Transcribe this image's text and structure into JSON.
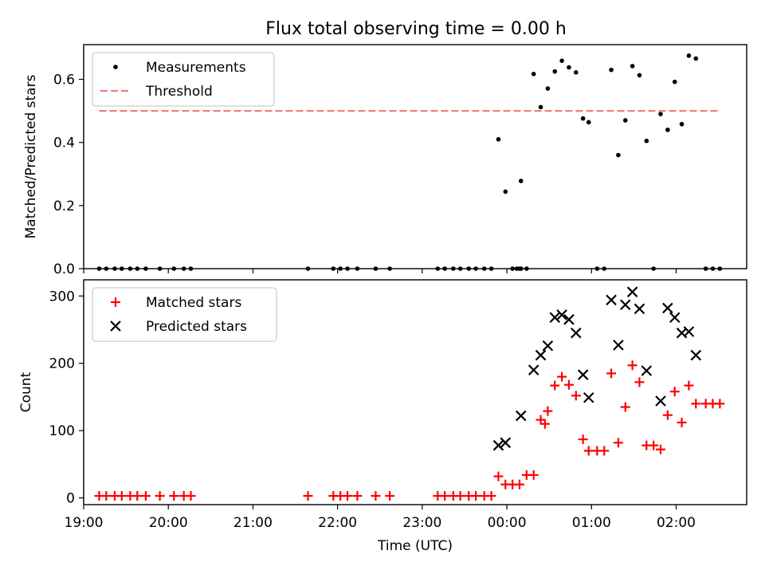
{
  "figure": {
    "title": "Flux total observing time = 0.00 h"
  },
  "chart_data": [
    {
      "type": "scatter",
      "ylabel": "Matched/Predicted stars",
      "xlim": [
        "19:00",
        "02:50"
      ],
      "ylim": [
        0,
        0.71
      ],
      "x_ticks": [
        "19:00",
        "20:00",
        "21:00",
        "22:00",
        "23:00",
        "00:00",
        "01:00",
        "02:00"
      ],
      "y_ticks": [
        0.0,
        0.2,
        0.4,
        0.6
      ],
      "y_tick_labels": [
        "0.0",
        "0.2",
        "0.4",
        "0.6"
      ],
      "grid": false,
      "legend": {
        "position": "top-left",
        "entries": [
          "Measurements",
          "Threshold"
        ]
      },
      "series": [
        {
          "name": "Measurements",
          "marker": "dot",
          "color": "#000000",
          "points": [
            [
              "19:11",
              0
            ],
            [
              "19:16",
              0
            ],
            [
              "19:22",
              0
            ],
            [
              "19:27",
              0
            ],
            [
              "19:33",
              0
            ],
            [
              "19:38",
              0
            ],
            [
              "19:44",
              0
            ],
            [
              "19:54",
              0
            ],
            [
              "20:04",
              0
            ],
            [
              "20:11",
              0
            ],
            [
              "20:16",
              0
            ],
            [
              "21:39",
              0
            ],
            [
              "21:57",
              0
            ],
            [
              "22:02",
              0
            ],
            [
              "22:07",
              0
            ],
            [
              "22:14",
              0
            ],
            [
              "22:27",
              0
            ],
            [
              "22:37",
              0
            ],
            [
              "23:11",
              0
            ],
            [
              "23:16",
              0
            ],
            [
              "23:22",
              0
            ],
            [
              "23:27",
              0
            ],
            [
              "23:33",
              0
            ],
            [
              "23:38",
              0
            ],
            [
              "23:44",
              0
            ],
            [
              "23:49",
              0
            ],
            [
              "23:54",
              0.41
            ],
            [
              "23:59",
              0.244
            ],
            [
              "00:04",
              0
            ],
            [
              "00:07",
              0
            ],
            [
              "00:09",
              0
            ],
            [
              "00:10",
              0
            ],
            [
              "00:10",
              0.278
            ],
            [
              "00:14",
              0
            ],
            [
              "00:19",
              0.617
            ],
            [
              "00:24",
              0.512
            ],
            [
              "00:29",
              0.571
            ],
            [
              "00:34",
              0.625
            ],
            [
              "00:39",
              0.659
            ],
            [
              "00:44",
              0.638
            ],
            [
              "00:49",
              0.622
            ],
            [
              "00:54",
              0.476
            ],
            [
              "00:58",
              0.464
            ],
            [
              "01:04",
              0
            ],
            [
              "01:09",
              0
            ],
            [
              "01:14",
              0.63
            ],
            [
              "01:19",
              0.36
            ],
            [
              "01:24",
              0.47
            ],
            [
              "01:29",
              0.642
            ],
            [
              "01:34",
              0.613
            ],
            [
              "01:39",
              0.405
            ],
            [
              "01:44",
              0
            ],
            [
              "01:49",
              0.49
            ],
            [
              "01:54",
              0.44
            ],
            [
              "01:59",
              0.592
            ],
            [
              "02:04",
              0.458
            ],
            [
              "02:09",
              0.675
            ],
            [
              "02:14",
              0.666
            ],
            [
              "02:21",
              0
            ],
            [
              "02:26",
              0
            ],
            [
              "02:31",
              0
            ]
          ]
        },
        {
          "name": "Threshold",
          "style": "dashed",
          "color": "#f08080",
          "points": [
            [
              "19:11",
              0.5
            ],
            [
              "02:31",
              0.5
            ]
          ]
        }
      ]
    },
    {
      "type": "scatter",
      "xlabel": "Time (UTC)",
      "ylabel": "Count",
      "xlim": [
        "19:00",
        "02:50"
      ],
      "ylim": [
        -10,
        324
      ],
      "x_ticks": [
        "19:00",
        "20:00",
        "21:00",
        "22:00",
        "23:00",
        "00:00",
        "01:00",
        "02:00"
      ],
      "y_ticks": [
        0,
        100,
        200,
        300
      ],
      "y_tick_labels": [
        "0",
        "100",
        "200",
        "300"
      ],
      "grid": false,
      "legend": {
        "position": "top-left",
        "entries": [
          "Matched stars",
          "Predicted stars"
        ]
      },
      "series": [
        {
          "name": "Matched stars",
          "marker": "plus",
          "color": "#ff0000",
          "points": [
            [
              "19:11",
              3
            ],
            [
              "19:16",
              3
            ],
            [
              "19:22",
              3
            ],
            [
              "19:27",
              3
            ],
            [
              "19:33",
              3
            ],
            [
              "19:38",
              3
            ],
            [
              "19:44",
              3
            ],
            [
              "19:54",
              3
            ],
            [
              "20:04",
              3
            ],
            [
              "20:11",
              3
            ],
            [
              "20:16",
              3
            ],
            [
              "21:39",
              3
            ],
            [
              "21:57",
              3
            ],
            [
              "22:02",
              3
            ],
            [
              "22:07",
              3
            ],
            [
              "22:14",
              3
            ],
            [
              "22:27",
              3
            ],
            [
              "22:37",
              3
            ],
            [
              "23:11",
              3
            ],
            [
              "23:16",
              3
            ],
            [
              "23:22",
              3
            ],
            [
              "23:27",
              3
            ],
            [
              "23:33",
              3
            ],
            [
              "23:38",
              3
            ],
            [
              "23:44",
              3
            ],
            [
              "23:49",
              3
            ],
            [
              "23:54",
              32
            ],
            [
              "23:59",
              20
            ],
            [
              "00:04",
              20
            ],
            [
              "00:09",
              20
            ],
            [
              "00:14",
              34
            ],
            [
              "00:19",
              34
            ],
            [
              "00:24",
              116
            ],
            [
              "00:27",
              110
            ],
            [
              "00:29",
              129
            ],
            [
              "00:34",
              167
            ],
            [
              "00:39",
              180
            ],
            [
              "00:44",
              168
            ],
            [
              "00:49",
              152
            ],
            [
              "00:54",
              87
            ],
            [
              "00:58",
              70
            ],
            [
              "01:04",
              70
            ],
            [
              "01:09",
              70
            ],
            [
              "01:14",
              185
            ],
            [
              "01:19",
              82
            ],
            [
              "01:24",
              135
            ],
            [
              "01:29",
              197
            ],
            [
              "01:34",
              172
            ],
            [
              "01:39",
              78
            ],
            [
              "01:44",
              78
            ],
            [
              "01:49",
              72
            ],
            [
              "01:54",
              123
            ],
            [
              "01:59",
              158
            ],
            [
              "02:04",
              112
            ],
            [
              "02:09",
              167
            ],
            [
              "02:14",
              140
            ],
            [
              "02:21",
              140
            ],
            [
              "02:26",
              140
            ],
            [
              "02:31",
              140
            ]
          ]
        },
        {
          "name": "Predicted stars",
          "marker": "x",
          "color": "#000000",
          "points": [
            [
              "23:54",
              78
            ],
            [
              "23:59",
              82
            ],
            [
              "00:10",
              122
            ],
            [
              "00:19",
              190
            ],
            [
              "00:24",
              212
            ],
            [
              "00:29",
              226
            ],
            [
              "00:34",
              268
            ],
            [
              "00:39",
              272
            ],
            [
              "00:44",
              265
            ],
            [
              "00:49",
              245
            ],
            [
              "00:54",
              183
            ],
            [
              "00:58",
              149
            ],
            [
              "01:14",
              294
            ],
            [
              "01:19",
              227
            ],
            [
              "01:24",
              287
            ],
            [
              "01:29",
              306
            ],
            [
              "01:34",
              281
            ],
            [
              "01:39",
              189
            ],
            [
              "01:49",
              144
            ],
            [
              "01:54",
              282
            ],
            [
              "01:59",
              268
            ],
            [
              "02:04",
              245
            ],
            [
              "02:09",
              247
            ],
            [
              "02:14",
              212
            ]
          ]
        }
      ]
    }
  ]
}
